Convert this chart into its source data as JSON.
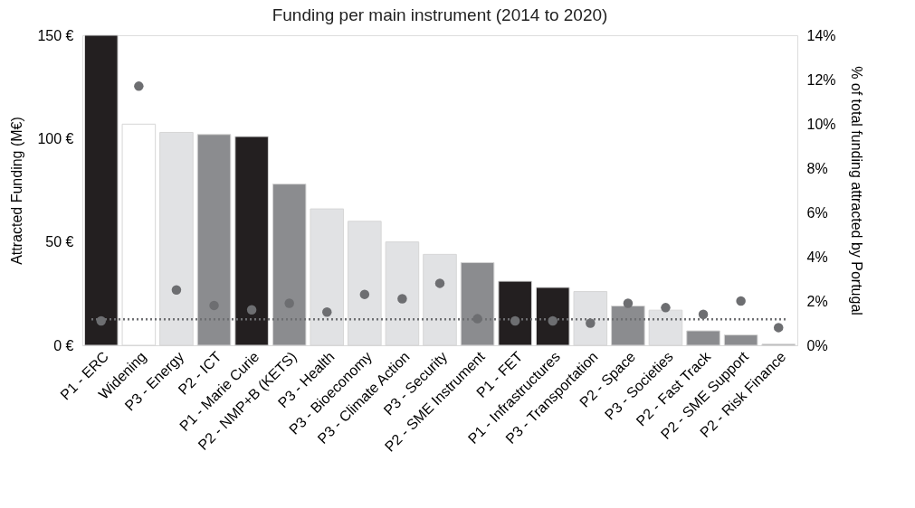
{
  "chart_data": {
    "type": "bar",
    "title": "Funding per main instrument (2014 to 2020)",
    "ylabel": "Attracted Funding (M€)",
    "y2label": "% of total funding attracted by Portugal",
    "categories": [
      "P1 - ERC",
      "Widening",
      "P3 - Energy",
      "P2 - ICT",
      "P1 - Marie Curie",
      "P2 - NMP+B (KETS)",
      "P3 - Health",
      "P3 - Bioeconomy",
      "P3 - Climate Action",
      "P3 - Security",
      "P2 - SME Instrument",
      "P1 - FET",
      "P1 - Infrastructures",
      "P3 - Transportation",
      "P2 - Space",
      "P3 - Societies",
      "P2 - Fast Track",
      "P2 - SME Support",
      "P2 - Risk Finance"
    ],
    "series": [
      {
        "values": [
          150,
          107,
          103,
          102,
          101,
          78,
          66,
          60,
          50,
          44,
          40,
          31,
          28,
          26,
          19,
          17,
          7,
          5,
          0.5
        ],
        "colors": [
          "#231f20",
          "#ffffff",
          "#e1e2e4",
          "#8b8c8f",
          "#231f20",
          "#8b8c8f",
          "#e1e2e4",
          "#e1e2e4",
          "#e1e2e4",
          "#e1e2e4",
          "#8b8c8f",
          "#231f20",
          "#231f20",
          "#e1e2e4",
          "#8b8c8f",
          "#e1e2e4",
          "#8b8c8f",
          "#8b8c8f",
          "#8b8c8f"
        ]
      },
      {
        "type": "scatter",
        "axis": "y2",
        "color": "#6d6e71",
        "values": [
          1.1,
          11.7,
          2.5,
          1.8,
          1.6,
          1.9,
          1.5,
          2.3,
          2.1,
          2.8,
          1.2,
          1.1,
          1.1,
          1.0,
          1.9,
          1.7,
          1.4,
          2.0,
          0.8
        ]
      }
    ],
    "ylim": [
      0,
      150
    ],
    "yticks": [
      {
        "value": 0,
        "label": "0 €"
      },
      {
        "value": 50,
        "label": "50 €"
      },
      {
        "value": 100,
        "label": "100 €"
      },
      {
        "value": 150,
        "label": "150 €"
      }
    ],
    "y2lim": [
      0,
      14
    ],
    "y2ticks": [
      {
        "value": 0,
        "label": "0%"
      },
      {
        "value": 2,
        "label": "2%"
      },
      {
        "value": 4,
        "label": "4%"
      },
      {
        "value": 6,
        "label": "6%"
      },
      {
        "value": 8,
        "label": "8%"
      },
      {
        "value": 10,
        "label": "10%"
      },
      {
        "value": 12,
        "label": "12%"
      },
      {
        "value": 14,
        "label": "14%"
      }
    ],
    "ref_lines": [
      {
        "axis": "y2",
        "value": 1.17,
        "label": null,
        "color": "#6d6e71",
        "line_style": "dotted"
      }
    ],
    "marker": "circle",
    "grid": false
  }
}
